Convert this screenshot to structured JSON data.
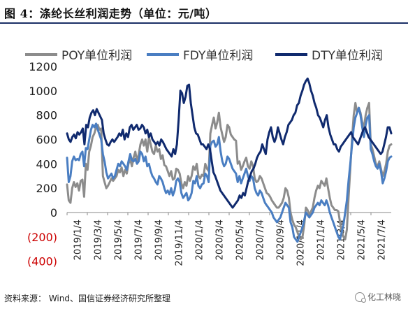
{
  "figure": {
    "title": "图 4：涤纶长丝利润走势（单位：元/吨）",
    "source": "资料来源：  Wind、国信证券经济研究所整理",
    "watermark": "化工林晓"
  },
  "chart_data": {
    "type": "line",
    "title": "",
    "xlabel": "",
    "ylabel": "",
    "unit": "元/吨",
    "ylim": [
      -400,
      1200
    ],
    "y_ticks": [
      -400,
      -200,
      0,
      200,
      400,
      600,
      800,
      1000,
      1200
    ],
    "y_tick_labels": [
      "(400)",
      "(200)",
      "0",
      "200",
      "400",
      "600",
      "800",
      "1000",
      "1200"
    ],
    "x_tick_labels": [
      "2019/1/4",
      "2019/3/4",
      "2019/5/4",
      "2019/7/4",
      "2019/9/4",
      "2019/11/4",
      "2020/1/4",
      "2020/3/4",
      "2020/5/4",
      "2020/7/4",
      "2020/9/4",
      "2020/11/4",
      "2021/1/4",
      "2021/3/4",
      "2021/5/4",
      "2021/7/4"
    ],
    "grid": false,
    "legend_position": "top",
    "colors": {
      "POY": "#8c8c8c",
      "FDY": "#4a7ec2",
      "DTY": "#102a6e",
      "negative_label": "#cc0000"
    },
    "series": [
      {
        "name": "POY单位利润",
        "key": "POY",
        "values": [
          230,
          100,
          80,
          200,
          250,
          210,
          240,
          180,
          260,
          270,
          130,
          400,
          350,
          500,
          550,
          620,
          650,
          700,
          720,
          680,
          690,
          300,
          250,
          200,
          220,
          250,
          280,
          260,
          280,
          300,
          350,
          330,
          370,
          300,
          350,
          320,
          400,
          440,
          380,
          450,
          500,
          420,
          480,
          560,
          600,
          550,
          600,
          500,
          620,
          560,
          500,
          480,
          550,
          500,
          520,
          440,
          470,
          390,
          380,
          340,
          300,
          340,
          270,
          280,
          360,
          350,
          320,
          240,
          200,
          250,
          220,
          300,
          260,
          300,
          380,
          350,
          400,
          300,
          280,
          310,
          300,
          400,
          360,
          340,
          650,
          720,
          780,
          690,
          740,
          820,
          700,
          640,
          580,
          620,
          720,
          700,
          640,
          620,
          600,
          590,
          400,
          420,
          350,
          380,
          420,
          450,
          380,
          360,
          420,
          380,
          280,
          250,
          260,
          300,
          280,
          240,
          200,
          160,
          150,
          130,
          100,
          80,
          60,
          40,
          40,
          60,
          80,
          120,
          200,
          180,
          120,
          0,
          -60,
          -100,
          -120,
          -160,
          -200,
          -220,
          -200,
          -100,
          40,
          20,
          -20,
          10,
          40,
          120,
          180,
          220,
          200,
          260,
          240,
          220,
          280,
          200,
          120,
          60,
          40,
          20,
          20,
          10,
          -80,
          -160,
          -200,
          -220,
          -140,
          120,
          360,
          600,
          800,
          900,
          820,
          860,
          820,
          740,
          700,
          800,
          860,
          900,
          560,
          520,
          460,
          400,
          380,
          420,
          360,
          300,
          340,
          400,
          500,
          550,
          560
        ]
      },
      {
        "name": "FDY单位利润",
        "key": "FDY",
        "values": [
          450,
          250,
          300,
          420,
          460,
          430,
          440,
          430,
          480,
          500,
          380,
          530,
          520,
          600,
          680,
          720,
          700,
          730,
          680,
          640,
          600,
          480,
          420,
          330,
          280,
          300,
          320,
          280,
          300,
          350,
          400,
          380,
          420,
          400,
          380,
          350,
          420,
          480,
          430,
          420,
          440,
          400,
          420,
          500,
          480,
          420,
          460,
          380,
          400,
          340,
          300,
          280,
          250,
          230,
          300,
          280,
          250,
          200,
          160,
          180,
          150,
          200,
          140,
          180,
          260,
          280,
          250,
          160,
          120,
          140,
          160,
          100,
          120,
          160,
          260,
          240,
          300,
          220,
          200,
          230,
          240,
          320,
          300,
          250,
          550,
          580,
          590,
          540,
          560,
          620,
          500,
          420,
          380,
          400,
          460,
          440,
          400,
          360,
          340,
          320,
          250,
          300,
          240,
          280,
          320,
          360,
          300,
          260,
          300,
          280,
          200,
          160,
          140,
          180,
          160,
          120,
          80,
          60,
          40,
          20,
          0,
          -40,
          -60,
          -80,
          -60,
          -40,
          0,
          40,
          80,
          60,
          40,
          -80,
          -120,
          -200,
          -220,
          -240,
          -200,
          -160,
          -120,
          -60,
          0,
          -20,
          -40,
          -20,
          0,
          40,
          60,
          80,
          60,
          100,
          80,
          60,
          100,
          60,
          0,
          -40,
          -80,
          -120,
          -160,
          -200,
          -220,
          -160,
          -100,
          0,
          100,
          260,
          400,
          550,
          700,
          780,
          820,
          860,
          800,
          700,
          620,
          720,
          780,
          800,
          520,
          480,
          420,
          380,
          360,
          400,
          340,
          240,
          280,
          340,
          420,
          450,
          460
        ]
      },
      {
        "name": "DTY单位利润",
        "key": "DTY",
        "values": [
          650,
          600,
          580,
          620,
          640,
          610,
          660,
          640,
          660,
          690,
          560,
          720,
          700,
          780,
          820,
          840,
          800,
          850,
          820,
          790,
          760,
          650,
          600,
          560,
          550,
          580,
          600,
          580,
          600,
          620,
          650,
          630,
          680,
          600,
          650,
          620,
          700,
          720,
          680,
          700,
          720,
          680,
          690,
          720,
          700,
          650,
          680,
          620,
          650,
          600,
          580,
          560,
          580,
          550,
          600,
          580,
          550,
          520,
          500,
          480,
          460,
          520,
          480,
          560,
          760,
          1000,
          980,
          900,
          950,
          1040,
          1050,
          900,
          800,
          700,
          650,
          640,
          600,
          560,
          560,
          540,
          520,
          560,
          520,
          420,
          330,
          300,
          260,
          220,
          180,
          160,
          140,
          120,
          100,
          80,
          60,
          40,
          60,
          80,
          100,
          140,
          120,
          160,
          140,
          200,
          260,
          300,
          340,
          360,
          400,
          450,
          480,
          500,
          560,
          520,
          480,
          600,
          660,
          700,
          620,
          580,
          620,
          700,
          650,
          600,
          560,
          620,
          660,
          720,
          740,
          760,
          800,
          820,
          880,
          900,
          960,
          1000,
          1050,
          1080,
          1100,
          1060,
          1000,
          960,
          900,
          860,
          800,
          780,
          740,
          700,
          760,
          800,
          700,
          640,
          600,
          560,
          560,
          520,
          500,
          540,
          560,
          580,
          600,
          620,
          640,
          660,
          620,
          600,
          580,
          560,
          600,
          640,
          680,
          700,
          660,
          620,
          600,
          580,
          560,
          540,
          520,
          500,
          480,
          500,
          560,
          620,
          700,
          700,
          650
        ]
      }
    ]
  }
}
